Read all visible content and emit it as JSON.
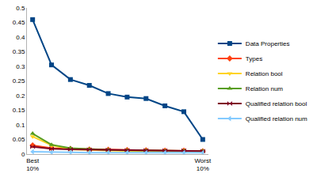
{
  "chart_data": {
    "type": "line",
    "categories": [
      "Best 10%",
      null,
      null,
      null,
      null,
      null,
      null,
      null,
      null,
      "Worst 10%"
    ],
    "series": [
      {
        "name": "Data Properties",
        "color": "#004586",
        "marker": "square",
        "values": [
          0.46,
          0.305,
          0.255,
          0.235,
          0.207,
          0.195,
          0.19,
          0.165,
          0.145,
          0.05
        ]
      },
      {
        "name": "Types",
        "color": "#ff420e",
        "marker": "diamond",
        "values": [
          0.03,
          0.02,
          0.018,
          0.016,
          0.015,
          0.014,
          0.013,
          0.012,
          0.012,
          0.01
        ]
      },
      {
        "name": "Relation bool",
        "color": "#ffd320",
        "marker": "triangle-down",
        "values": [
          0.06,
          0.03,
          0.016,
          0.013,
          0.012,
          0.011,
          0.011,
          0.01,
          0.01,
          0.008
        ]
      },
      {
        "name": "Relation num",
        "color": "#579d1c",
        "marker": "triangle-up",
        "values": [
          0.07,
          0.032,
          0.02,
          0.016,
          0.014,
          0.013,
          0.012,
          0.011,
          0.011,
          0.01
        ]
      },
      {
        "name": "Qualified relation bool",
        "color": "#7e0021",
        "marker": "bowtie",
        "values": [
          0.025,
          0.018,
          0.016,
          0.015,
          0.014,
          0.013,
          0.013,
          0.012,
          0.012,
          0.01
        ]
      },
      {
        "name": "Qualified relation num",
        "color": "#83caff",
        "marker": "triangle-left",
        "values": [
          0.008,
          0.006,
          0.006,
          0.005,
          0.005,
          0.005,
          0.005,
          0.005,
          0.005,
          0.005
        ]
      }
    ],
    "ylim": [
      0,
      0.5
    ],
    "yticks": [
      0,
      0.05,
      0.1,
      0.15,
      0.2,
      0.25,
      0.3,
      0.35,
      0.4,
      0.45,
      0.5
    ],
    "grid": false,
    "legend": "right"
  }
}
